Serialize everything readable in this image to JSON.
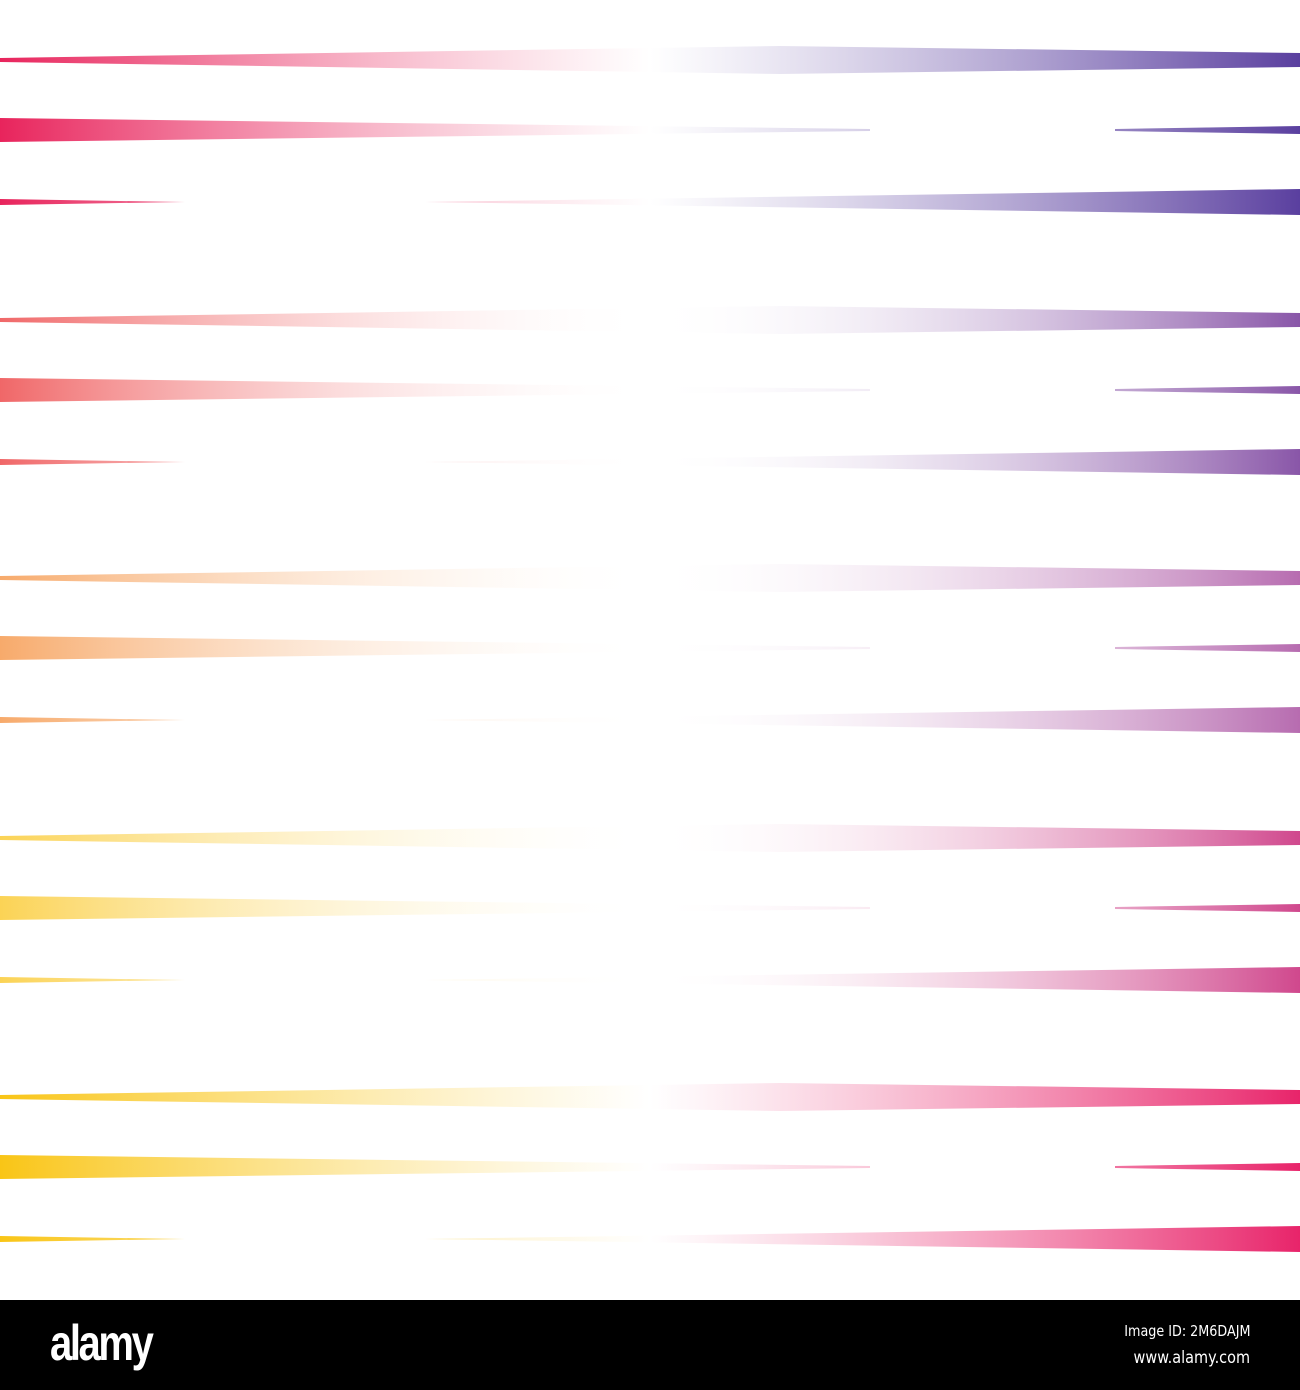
{
  "colors": {
    "left_top": "#e8245c",
    "left_mid": "#f27d6c",
    "left_low": "#fcd76a",
    "left_bottom": "#f9c516",
    "right_top": "#5a3f9f",
    "right_mid": "#b76cb0",
    "right_bottom": "#e8246a",
    "background": "#ffffff",
    "watermark_bar": "#000000"
  },
  "watermark": {
    "logo": "alamy",
    "image_id": "Image ID: 2M6DAJM",
    "website": "www.alamy.com"
  }
}
